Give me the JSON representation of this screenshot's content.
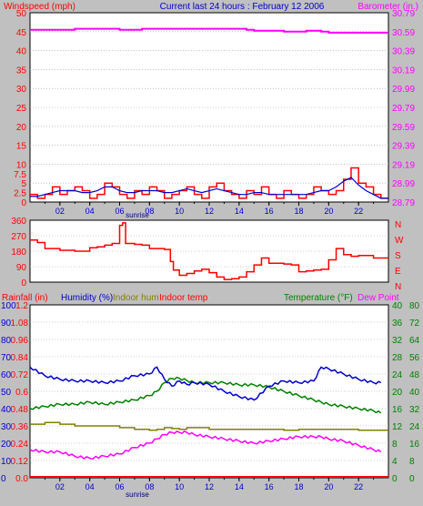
{
  "top_titles": {
    "left": "Windspeed (mph)",
    "center": "Current last 24 hours : February 12 2006",
    "right": "Barometer (in.)"
  },
  "bottom_titles": {
    "rainfall": "Rainfall (in)",
    "humidity": "Humidity (%)",
    "indoor_hum": "Indoor hum",
    "indoor_temp": "Indoor temp",
    "temperature": "Temperature (°F)",
    "dew_point": "Dew Point"
  },
  "x_ticks": [
    "02",
    "04",
    "06",
    "08",
    "10",
    "12",
    "14",
    "16",
    "18",
    "20",
    "22"
  ],
  "sunrise_label": "sunrise",
  "colors": {
    "red": "#ff0000",
    "blue": "#0000cc",
    "magenta": "#ff00ff",
    "green": "#008000",
    "olive": "#808000",
    "background": "#c0c0c0",
    "plot_bg": "#ffffff"
  },
  "chart_data": [
    {
      "type": "line",
      "x_range_hours": [
        0,
        24
      ],
      "y_left_ticks": [
        "0",
        "2.5",
        "5",
        "7.5",
        "10",
        "15",
        "20",
        "25",
        "30",
        "35",
        "40",
        "45",
        "50"
      ],
      "y_right_ticks": [
        "28.79",
        "28.99",
        "29.19",
        "29.39",
        "29.59",
        "29.79",
        "29.99",
        "30.19",
        "30.39",
        "30.59",
        "30.79"
      ],
      "windspeed_x": [
        0,
        0.5,
        1,
        1.5,
        2,
        2.5,
        3,
        3.5,
        4,
        4.5,
        5,
        5.5,
        6,
        6.5,
        7,
        7.5,
        8,
        8.5,
        9,
        9.5,
        10,
        10.5,
        11,
        11.5,
        12,
        12.5,
        13,
        13.5,
        14,
        14.5,
        15,
        15.5,
        16,
        16.5,
        17,
        17.5,
        18,
        18.5,
        19,
        19.5,
        20,
        20.5,
        21,
        21.5,
        22,
        22.5,
        23,
        23.5
      ],
      "windspeed_gust": [
        2,
        1,
        2,
        4,
        2,
        3,
        4,
        3,
        1,
        2,
        5,
        4,
        2,
        1,
        3,
        2,
        4,
        3,
        1,
        2,
        3,
        4,
        2,
        1,
        4,
        5,
        3,
        2,
        1,
        3,
        2,
        4,
        2,
        1,
        3,
        2,
        1,
        2,
        4,
        3,
        2,
        3,
        6,
        9,
        5,
        4,
        2,
        1
      ],
      "windspeed_avg": [
        1.5,
        1.5,
        2,
        2.5,
        3,
        3,
        3,
        2.5,
        2.5,
        3,
        4,
        4,
        3,
        2.5,
        2.5,
        3,
        3,
        3,
        2.5,
        2.5,
        3,
        3.5,
        3,
        2.5,
        3,
        3.5,
        3,
        2.5,
        2,
        2,
        2.5,
        2.5,
        2,
        2,
        2,
        2,
        2,
        2,
        2.5,
        3,
        3,
        4,
        5.5,
        6.5,
        4.5,
        3,
        2,
        1
      ],
      "barometer_x": [
        0,
        2.2,
        3,
        6,
        7.5,
        9,
        12,
        14.5,
        15,
        16.5,
        17,
        18,
        18.5,
        19.5,
        20,
        24
      ],
      "barometer_values": [
        30.61,
        30.61,
        30.62,
        30.61,
        30.62,
        30.62,
        30.62,
        30.61,
        30.6,
        30.6,
        30.59,
        30.59,
        30.6,
        30.59,
        30.58,
        30.58
      ]
    },
    {
      "type": "line",
      "y_ticks": [
        "0",
        "90",
        "180",
        "270",
        "360"
      ],
      "y_right_labels": [
        "N",
        "W",
        "S",
        "E",
        "N"
      ],
      "wind_dir_x": [
        0,
        0.5,
        1,
        2,
        3,
        4,
        4.5,
        5,
        5.5,
        6,
        6.2,
        6.4,
        6.6,
        7,
        7.5,
        8,
        8.5,
        9,
        9.4,
        9.6,
        10,
        10.5,
        11,
        11.5,
        12,
        12.5,
        13,
        13.5,
        14,
        14.5,
        15,
        15.5,
        16,
        17,
        17.5,
        18,
        18.5,
        19,
        19.5,
        20,
        20.5,
        21,
        21.5,
        22,
        23,
        23.5
      ],
      "wind_dir_values": [
        245,
        230,
        195,
        185,
        180,
        200,
        205,
        215,
        225,
        330,
        345,
        225,
        225,
        220,
        215,
        195,
        195,
        190,
        120,
        70,
        40,
        50,
        65,
        75,
        55,
        30,
        15,
        20,
        30,
        60,
        100,
        140,
        110,
        105,
        100,
        60,
        65,
        70,
        75,
        130,
        195,
        160,
        150,
        155,
        140,
        140
      ]
    },
    {
      "type": "line",
      "y_rain_ticks": [
        "0.0",
        "0.12",
        "0.24",
        "0.36",
        "0.48",
        "0.6",
        "0.72",
        "0.84",
        "0.96",
        "1.08",
        "1.2"
      ],
      "y_hum_ticks": [
        "0",
        "10",
        "20",
        "30",
        "40",
        "50",
        "60",
        "70",
        "80",
        "90",
        "100"
      ],
      "y_temp_ticks": [
        "0",
        "4",
        "8",
        "12",
        "16",
        "20",
        "24",
        "28",
        "32",
        "36",
        "40"
      ],
      "y_temp2_ticks": [
        "0",
        "8",
        "16",
        "24",
        "32",
        "40",
        "48",
        "56",
        "64",
        "72",
        "80"
      ],
      "x": [
        0,
        1,
        2,
        3,
        4,
        5,
        6,
        7,
        8,
        8.5,
        9,
        9.5,
        10,
        10.5,
        11,
        12,
        13,
        14,
        15,
        16,
        17,
        18,
        19,
        19.5,
        20,
        21,
        22,
        23,
        23.5
      ],
      "humidity": [
        64,
        59,
        57,
        56,
        56,
        55,
        56,
        59,
        60,
        64,
        57,
        53,
        56,
        54,
        55,
        54,
        50,
        47,
        45,
        53,
        56,
        55,
        56,
        64,
        63,
        60,
        57,
        55,
        55
      ],
      "rainfall": [
        0,
        0,
        0,
        0,
        0,
        0,
        0,
        0,
        0,
        0,
        0,
        0,
        0,
        0,
        0,
        0,
        0,
        0,
        0,
        0,
        0,
        0,
        0,
        0,
        0,
        0,
        0,
        0,
        0
      ],
      "indoor_temp_hum": [
        31,
        32,
        31,
        30,
        30,
        30,
        29,
        28,
        27.5,
        28,
        29,
        28.5,
        28,
        29,
        29,
        28,
        28,
        28,
        28,
        28,
        27.5,
        28,
        28,
        28,
        28,
        28,
        27.5,
        27.5,
        27.5
      ],
      "temperature": [
        16,
        16.5,
        17,
        17,
        17.5,
        17,
        17.5,
        18,
        19,
        20,
        22,
        23,
        23,
        22.5,
        22,
        22,
        22,
        21.5,
        21.5,
        21,
        20,
        19,
        18,
        17.5,
        17,
        16.5,
        16,
        15.5,
        15
      ],
      "dew_point": [
        6.5,
        6,
        6,
        5,
        4.5,
        5,
        5.5,
        7,
        8,
        9,
        10,
        10.5,
        10.5,
        10.5,
        10,
        9.5,
        9,
        8.5,
        8,
        8.5,
        9,
        9.5,
        9.5,
        9.5,
        9,
        8.5,
        7.5,
        6.5,
        6
      ]
    }
  ]
}
